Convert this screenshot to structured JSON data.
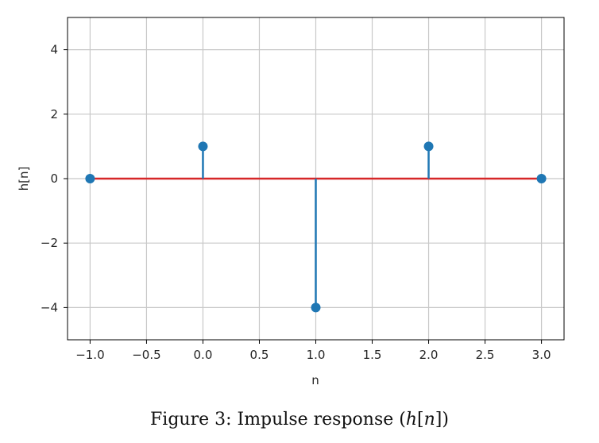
{
  "chart_data": {
    "type": "stem",
    "x": [
      -1.0,
      0.0,
      1.0,
      2.0,
      3.0
    ],
    "y": [
      0,
      1,
      -4,
      1,
      0
    ],
    "xlabel": "n",
    "ylabel": "h[n]",
    "xlim": [
      -1.2,
      3.2
    ],
    "ylim": [
      -5,
      5
    ],
    "xticks": [
      -1.0,
      -0.5,
      0.0,
      0.5,
      1.0,
      1.5,
      2.0,
      2.5,
      3.0
    ],
    "xtick_labels": [
      "−1.0",
      "−0.5",
      "0.0",
      "0.5",
      "1.0",
      "1.5",
      "2.0",
      "2.5",
      "3.0"
    ],
    "yticks": [
      -4,
      -2,
      0,
      2,
      4
    ],
    "ytick_labels": [
      "−4",
      "−2",
      "0",
      "2",
      "4"
    ],
    "grid": true,
    "colors": {
      "stem": "#1f77b4",
      "baseline": "#d62728",
      "grid": "#c8c8c8"
    }
  },
  "caption": {
    "prefix": "Figure 3: Impulse response (",
    "math": "h",
    "bracket_open": "[",
    "math2": "n",
    "suffix": "])"
  }
}
